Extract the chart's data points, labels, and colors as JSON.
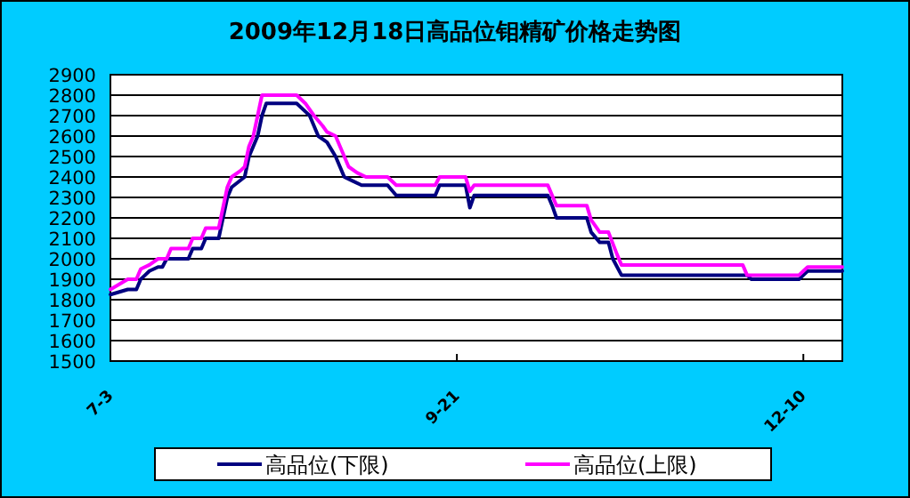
{
  "chart_data": {
    "type": "line",
    "title": "2009年12月18日高品位钼精矿价格走势图",
    "xlim": [
      "--07-03",
      "--12-19"
    ],
    "xticks": [
      {
        "value": "--07-03",
        "label": "7-3"
      },
      {
        "value": "--09-21",
        "label": "9-21"
      },
      {
        "value": "--12-10",
        "label": "12-10"
      }
    ],
    "ylim": [
      1500,
      2900
    ],
    "yticks": [
      1500,
      1600,
      1700,
      1800,
      1900,
      2000,
      2100,
      2200,
      2300,
      2400,
      2500,
      2600,
      2700,
      2800,
      2900
    ],
    "grid": "y",
    "legend": "bottom",
    "series": [
      {
        "name": "高品位(下限)",
        "color": "#000080",
        "x": [
          "--07-03",
          "--07-07",
          "--07-09",
          "--07-10",
          "--07-11",
          "--07-12",
          "--07-14",
          "--07-15",
          "--07-16",
          "--07-21",
          "--07-22",
          "--07-24",
          "--07-25",
          "--07-28",
          "--07-29",
          "--07-30",
          "--07-31",
          "--08-03",
          "--08-04",
          "--08-05",
          "--08-06",
          "--08-07",
          "--08-08",
          "--08-15",
          "--08-17",
          "--08-18",
          "--08-20",
          "--08-22",
          "--08-24",
          "--08-26",
          "--08-28",
          "--08-30",
          "--09-05",
          "--09-07",
          "--09-16",
          "--09-17",
          "--09-23",
          "--09-24",
          "--09-25",
          "--10-12",
          "--10-13",
          "--10-14",
          "--10-21",
          "--10-22",
          "--10-24",
          "--10-26",
          "--10-27",
          "--10-29",
          "--11-27",
          "--11-28",
          "--12-09",
          "--12-10",
          "--12-11",
          "--12-19"
        ],
        "values": [
          1825,
          1850,
          1850,
          1900,
          1920,
          1940,
          1960,
          1960,
          2000,
          2000,
          2050,
          2050,
          2100,
          2100,
          2200,
          2300,
          2350,
          2400,
          2500,
          2550,
          2600,
          2700,
          2760,
          2760,
          2720,
          2700,
          2600,
          2570,
          2500,
          2400,
          2380,
          2360,
          2360,
          2310,
          2310,
          2360,
          2360,
          2250,
          2310,
          2310,
          2260,
          2200,
          2200,
          2130,
          2080,
          2080,
          2000,
          1920,
          1920,
          1900,
          1900,
          1920,
          1940,
          1940
        ]
      },
      {
        "name": "高品位(上限)",
        "color": "#ff00ff",
        "x": [
          "--07-03",
          "--07-07",
          "--07-09",
          "--07-10",
          "--07-12",
          "--07-14",
          "--07-16",
          "--07-17",
          "--07-21",
          "--07-22",
          "--07-24",
          "--07-25",
          "--07-28",
          "--07-29",
          "--07-30",
          "--07-31",
          "--08-02",
          "--08-03",
          "--08-04",
          "--08-05",
          "--08-06",
          "--08-07",
          "--08-15",
          "--08-17",
          "--08-19",
          "--08-21",
          "--08-22",
          "--08-24",
          "--08-26",
          "--08-27",
          "--08-29",
          "--08-31",
          "--09-05",
          "--09-07",
          "--09-16",
          "--09-17",
          "--09-23",
          "--09-24",
          "--09-25",
          "--10-12",
          "--10-13",
          "--10-14",
          "--10-21",
          "--10-22",
          "--10-24",
          "--10-26",
          "--10-28",
          "--10-29",
          "--11-26",
          "--11-27",
          "--12-09",
          "--12-10",
          "--12-11",
          "--12-19"
        ],
        "values": [
          1850,
          1900,
          1900,
          1950,
          1970,
          2000,
          2000,
          2050,
          2050,
          2100,
          2100,
          2150,
          2150,
          2250,
          2350,
          2400,
          2430,
          2450,
          2550,
          2600,
          2700,
          2800,
          2800,
          2760,
          2700,
          2650,
          2620,
          2600,
          2500,
          2450,
          2420,
          2400,
          2400,
          2360,
          2360,
          2400,
          2400,
          2330,
          2360,
          2360,
          2310,
          2260,
          2260,
          2190,
          2130,
          2130,
          2020,
          1970,
          1970,
          1920,
          1920,
          1940,
          1960,
          1960
        ]
      }
    ]
  }
}
